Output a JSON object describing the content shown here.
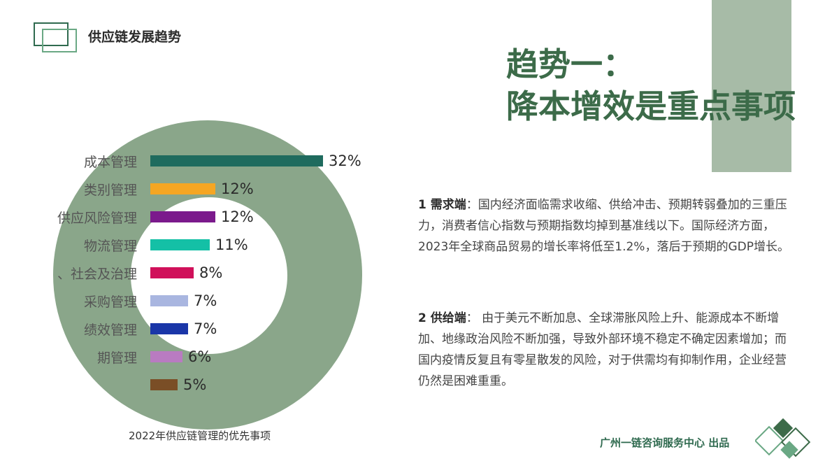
{
  "header": {
    "title": "供应链发展趋势"
  },
  "headline": {
    "line1": "趋势一：",
    "line2": "降本增效是重点事项"
  },
  "chart_data": {
    "type": "bar",
    "orientation": "horizontal",
    "title": "2022年供应链管理的优先事项",
    "categories": [
      "成本管理",
      "类别管理",
      "供应风险管理",
      "物流管理",
      "、社会及治理",
      "采购管理",
      "绩效管理",
      "期管理",
      ""
    ],
    "values": [
      32,
      12,
      12,
      11,
      8,
      7,
      7,
      6,
      5
    ],
    "value_labels": [
      "32%",
      "12%",
      "12%",
      "11%",
      "8%",
      "7%",
      "7%",
      "6%",
      "5%"
    ],
    "colors": [
      "#1f6b5e",
      "#f5a623",
      "#7b1a8c",
      "#14c0a6",
      "#d0105a",
      "#a9b6e0",
      "#1a36a8",
      "#b97bc1",
      "#7a4e26"
    ],
    "xlim": [
      0,
      32
    ]
  },
  "paragraphs": [
    {
      "lead": "1  需求端",
      "text": "：国内经济面临需求收缩、供给冲击、预期转弱叠加的三重压力，消费者信心指数与预期指数均掉到基准线以下。国际经济方面，2023年全球商品贸易的增长率将低至1.2%，落后于预期的GDP增长。"
    },
    {
      "lead": "2  供给端",
      "text": "： 由于美元不断加息、全球滞胀风险上升、能源成本不断增加、地缘政治风险不断加强，导致外部环境不稳定不确定因素增加；而国内疫情反复且有零星散发的风险，对于供需均有抑制作用，企业经营仍然是困难重重。"
    }
  ],
  "footer": {
    "credit": "广州一链咨询服务中心 出品"
  },
  "colors": {
    "accent": "#3c6b49",
    "donut": "#8aa68a",
    "deco": "#a7bba7"
  }
}
